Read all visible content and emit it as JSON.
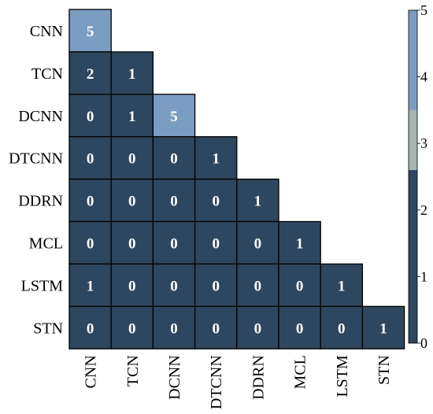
{
  "chart_data": {
    "type": "heatmap",
    "title": "",
    "rows": [
      "CNN",
      "TCN",
      "DCNN",
      "DTCNN",
      "DDRN",
      "MCL",
      "LSTM",
      "STN"
    ],
    "columns": [
      "CNN",
      "TCN",
      "DCNN",
      "DTCNN",
      "DDRN",
      "MCL",
      "LSTM",
      "STN"
    ],
    "layout": "lower-triangular",
    "values": [
      [
        5
      ],
      [
        2,
        1
      ],
      [
        0,
        1,
        5
      ],
      [
        0,
        0,
        0,
        1
      ],
      [
        0,
        0,
        0,
        0,
        1
      ],
      [
        0,
        0,
        0,
        0,
        0,
        1
      ],
      [
        1,
        0,
        0,
        0,
        0,
        0,
        1
      ],
      [
        0,
        0,
        0,
        0,
        0,
        0,
        0,
        1
      ]
    ],
    "colorbar": {
      "range": [
        0,
        5
      ],
      "ticks": [
        "0",
        "1",
        "2",
        "3",
        "4",
        "5"
      ],
      "bins": [
        {
          "from": 0,
          "to": 2.6,
          "color": "#2e4760"
        },
        {
          "from": 2.6,
          "to": 3.5,
          "color": "#a4b5b0"
        },
        {
          "from": 3.5,
          "to": 5,
          "color": "#7c9dc2"
        }
      ]
    }
  }
}
